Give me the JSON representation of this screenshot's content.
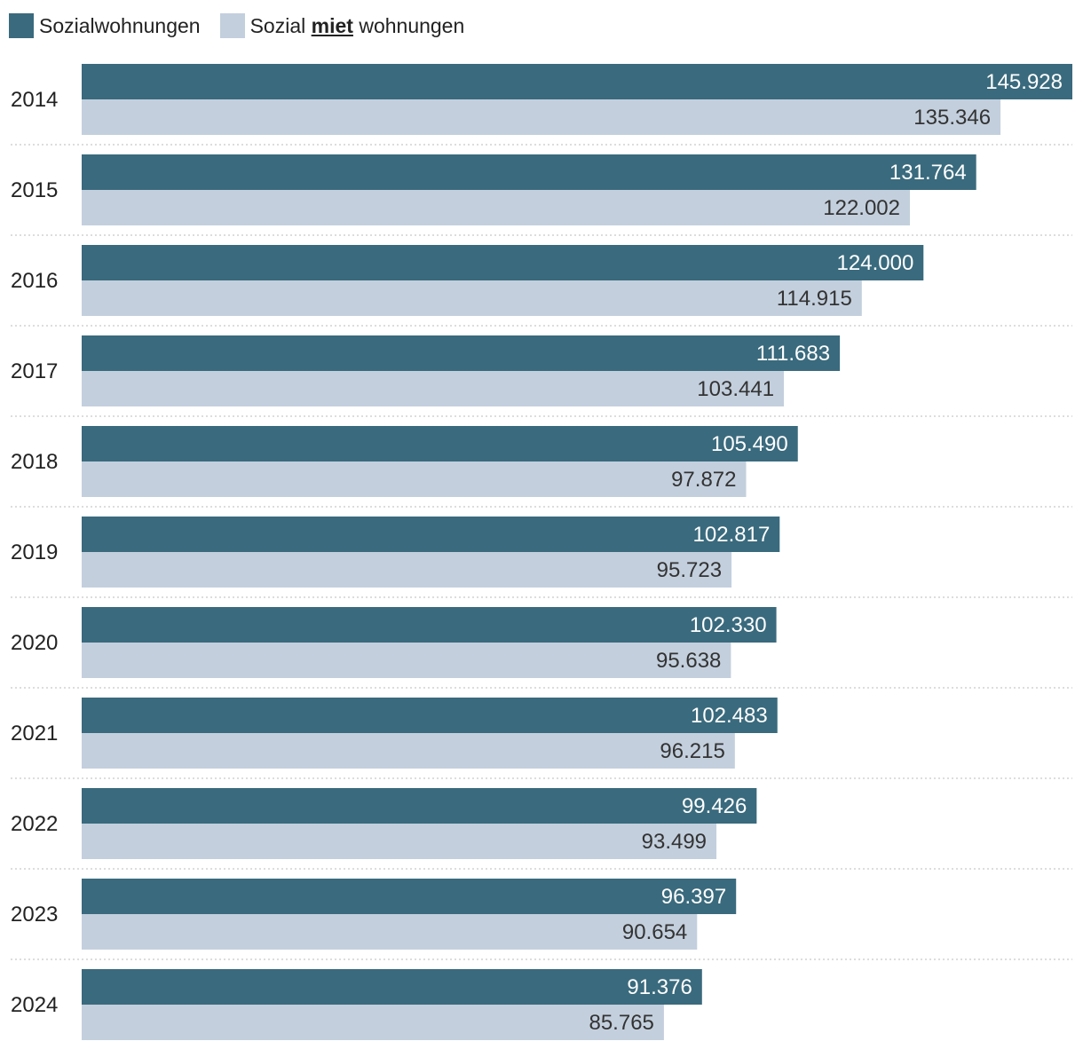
{
  "legend": {
    "series1": "Sozialwohnungen",
    "series2_part1": "Sozial",
    "series2_part2": "miet",
    "series2_part3": "wohnungen"
  },
  "chart_data": {
    "type": "bar",
    "orientation": "horizontal",
    "categories": [
      "2014",
      "2015",
      "2016",
      "2017",
      "2018",
      "2019",
      "2020",
      "2021",
      "2022",
      "2023",
      "2024"
    ],
    "series": [
      {
        "name": "Sozialwohnungen",
        "color": "#3a6a7d",
        "label_color": "#ffffff",
        "values": [
          145928,
          131764,
          124000,
          111683,
          105490,
          102817,
          102330,
          102483,
          99426,
          96397,
          91376
        ],
        "labels": [
          "145.928",
          "131.764",
          "124.000",
          "111.683",
          "105.490",
          "102.817",
          "102.330",
          "102.483",
          "99.426",
          "96.397",
          "91.376"
        ]
      },
      {
        "name": "Sozial miet wohnungen",
        "color": "#c3cfdd",
        "label_color": "#333333",
        "values": [
          135346,
          122002,
          114915,
          103441,
          97872,
          95723,
          95638,
          96215,
          93499,
          90654,
          85765
        ],
        "labels": [
          "135.346",
          "122.002",
          "114.915",
          "103.441",
          "97.872",
          "95.723",
          "95.638",
          "96.215",
          "93.499",
          "90.654",
          "85.765"
        ]
      }
    ],
    "xlim": [
      0,
      145928
    ],
    "grid": false,
    "row_separators": "dotted",
    "legend_position": "top-left"
  }
}
